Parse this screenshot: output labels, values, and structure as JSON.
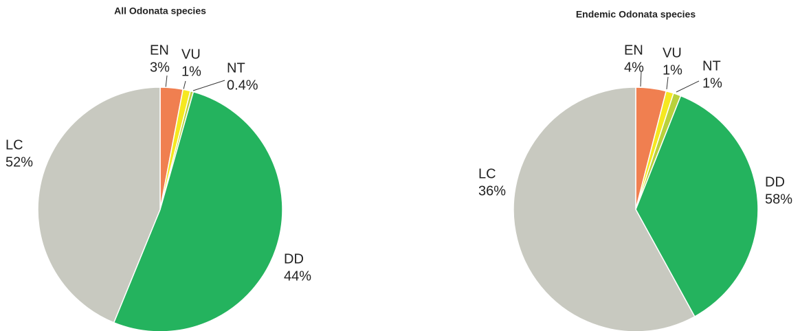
{
  "chart_data": [
    {
      "type": "pie",
      "title": "All Odonata species",
      "categories": [
        "EN",
        "VU",
        "NT",
        "LC",
        "DD"
      ],
      "values": [
        3,
        1,
        0.4,
        52,
        44
      ],
      "value_labels": [
        "3%",
        "1%",
        "0.4%",
        "52%",
        "44%"
      ],
      "colors": [
        "#f07f50",
        "#f6e820",
        "#b9d13c",
        "#24b35e",
        "#c8c9c0"
      ]
    },
    {
      "type": "pie",
      "title": "Endemic Odonata species",
      "categories": [
        "EN",
        "VU",
        "NT",
        "LC",
        "DD"
      ],
      "values": [
        4,
        1,
        1,
        36,
        58
      ],
      "value_labels": [
        "4%",
        "1%",
        "1%",
        "36%",
        "58%"
      ],
      "colors": [
        "#f07f50",
        "#f6e820",
        "#b9d13c",
        "#24b35e",
        "#c8c9c0"
      ]
    }
  ]
}
